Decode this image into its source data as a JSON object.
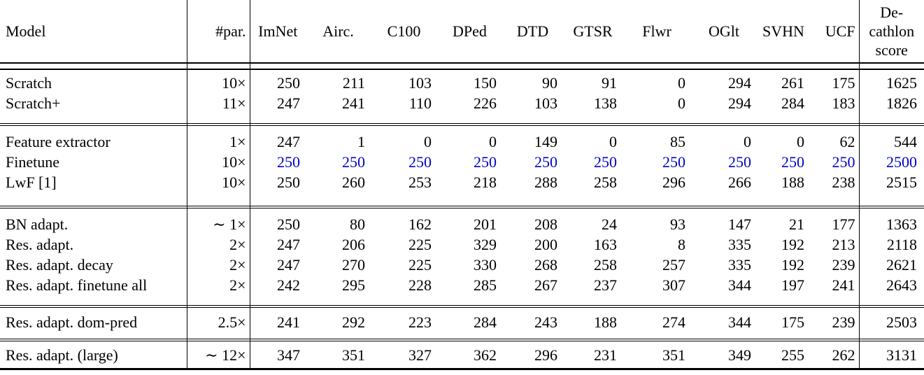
{
  "table": {
    "header": {
      "model": "Model",
      "par": "#par.",
      "datasets": [
        "ImNet",
        "Airc.",
        "C100",
        "DPed",
        "DTD",
        "GTSR",
        "Flwr",
        "OGlt",
        "SVHN",
        "UCF"
      ],
      "score_lines": [
        "De-",
        "cathlon",
        "score"
      ]
    },
    "colors": {
      "text": "#000000",
      "highlight": "#0000cc",
      "background": "#ffffff",
      "rule": "#000000"
    },
    "groups": [
      {
        "rows": [
          {
            "model": "Scratch",
            "par": "10×",
            "values": [
              "250",
              "211",
              "103",
              "150",
              "90",
              "91",
              "0",
              "294",
              "261",
              "175"
            ],
            "score": "1625",
            "highlight": false
          },
          {
            "model": "Scratch+",
            "par": "11×",
            "values": [
              "247",
              "241",
              "110",
              "226",
              "103",
              "138",
              "0",
              "294",
              "284",
              "183"
            ],
            "score": "1826",
            "highlight": false
          }
        ]
      },
      {
        "rows": [
          {
            "model": "Feature extractor",
            "par": "1×",
            "values": [
              "247",
              "1",
              "0",
              "0",
              "149",
              "0",
              "85",
              "0",
              "0",
              "62"
            ],
            "score": "544",
            "highlight": false
          },
          {
            "model": "Finetune",
            "par": "10×",
            "values": [
              "250",
              "250",
              "250",
              "250",
              "250",
              "250",
              "250",
              "250",
              "250",
              "250"
            ],
            "score": "2500",
            "highlight": true
          },
          {
            "model": "LwF [1]",
            "par": "10×",
            "values": [
              "250",
              "260",
              "253",
              "218",
              "288",
              "258",
              "296",
              "266",
              "188",
              "238"
            ],
            "score": "2515",
            "highlight": false
          }
        ]
      },
      {
        "rows": [
          {
            "model": "BN adapt.",
            "par": "∼ 1×",
            "values": [
              "250",
              "80",
              "162",
              "201",
              "208",
              "24",
              "93",
              "147",
              "21",
              "177"
            ],
            "score": "1363",
            "highlight": false
          },
          {
            "model": "Res. adapt.",
            "par": "2×",
            "values": [
              "247",
              "206",
              "225",
              "329",
              "200",
              "163",
              "8",
              "335",
              "192",
              "213"
            ],
            "score": "2118",
            "highlight": false
          },
          {
            "model": "Res. adapt. decay",
            "par": "2×",
            "values": [
              "247",
              "270",
              "225",
              "330",
              "268",
              "258",
              "257",
              "335",
              "192",
              "239"
            ],
            "score": "2621",
            "highlight": false
          },
          {
            "model": "Res. adapt. finetune all",
            "par": "2×",
            "values": [
              "242",
              "295",
              "228",
              "285",
              "267",
              "237",
              "307",
              "344",
              "197",
              "241"
            ],
            "score": "2643",
            "highlight": false
          }
        ]
      },
      {
        "rows": [
          {
            "model": "Res. adapt. dom-pred",
            "par": "2.5×",
            "values": [
              "241",
              "292",
              "223",
              "284",
              "243",
              "188",
              "274",
              "344",
              "175",
              "239"
            ],
            "score": "2503",
            "highlight": false
          }
        ]
      },
      {
        "rows": [
          {
            "model": "Res. adapt. (large)",
            "par": "∼ 12×",
            "values": [
              "347",
              "351",
              "327",
              "362",
              "296",
              "231",
              "351",
              "349",
              "255",
              "262"
            ],
            "score": "3131",
            "highlight": false
          }
        ]
      }
    ]
  }
}
